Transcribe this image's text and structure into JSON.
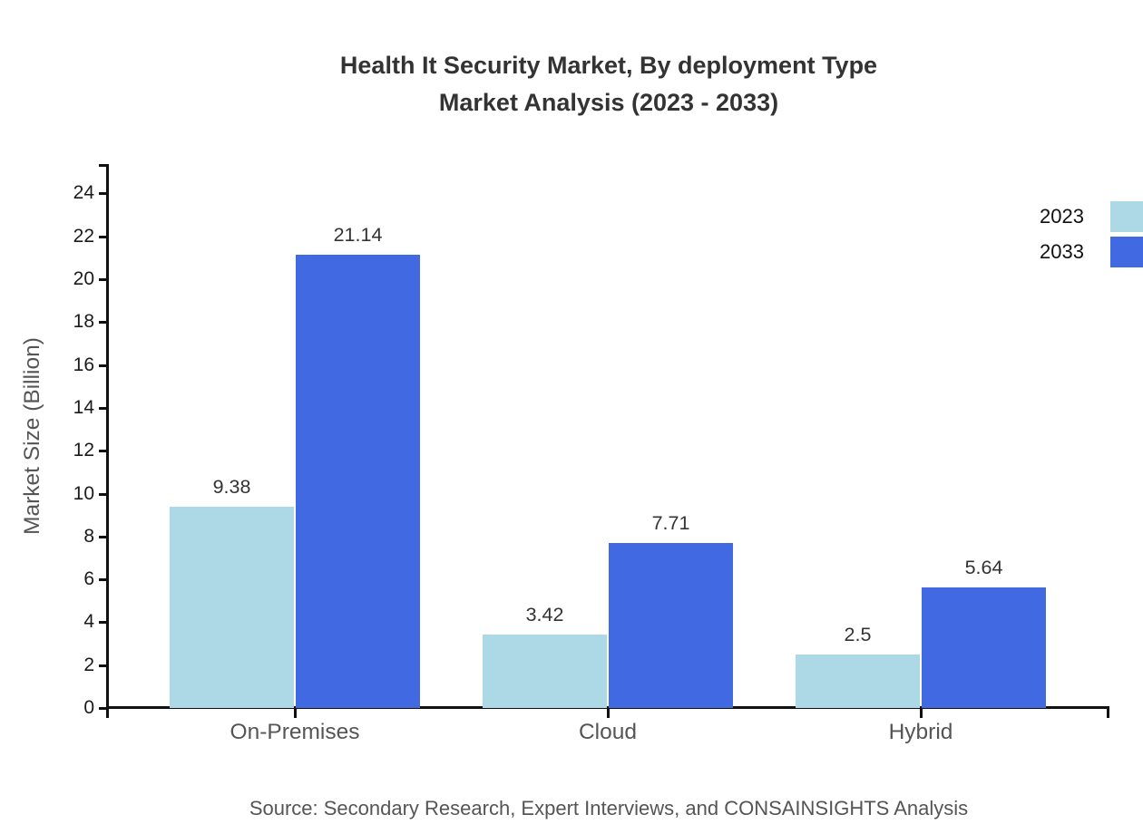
{
  "title": {
    "line1": "Health It Security Market, By deployment Type",
    "line2": "Market Analysis (2023 - 2033)"
  },
  "source": "Source: Secondary Research, Expert Interviews, and CONSAINSIGHTS Analysis",
  "chart_data": {
    "type": "bar",
    "categories": [
      "On-Premises",
      "Cloud",
      "Hybrid"
    ],
    "series": [
      {
        "name": "2023",
        "color": "#ADD8E6",
        "values": [
          9.38,
          3.42,
          2.5
        ]
      },
      {
        "name": "2033",
        "color": "#4169E1",
        "values": [
          21.14,
          7.71,
          5.64
        ]
      }
    ],
    "value_labels": [
      "9.38",
      "21.14",
      "3.42",
      "7.71",
      "2.5",
      "5.64"
    ],
    "title": "Health It Security Market, By deployment Type Market Analysis (2023 - 2033)",
    "xlabel": "",
    "ylabel": "Market Size (Billion)",
    "ylim": [
      0,
      25.37
    ],
    "yticks": [
      0,
      2,
      4,
      6,
      8,
      10,
      12,
      14,
      16,
      18,
      20,
      22,
      24
    ],
    "grid": false,
    "legend_position": "top-right",
    "axis_color": "#111111",
    "label_color": "#333333"
  }
}
